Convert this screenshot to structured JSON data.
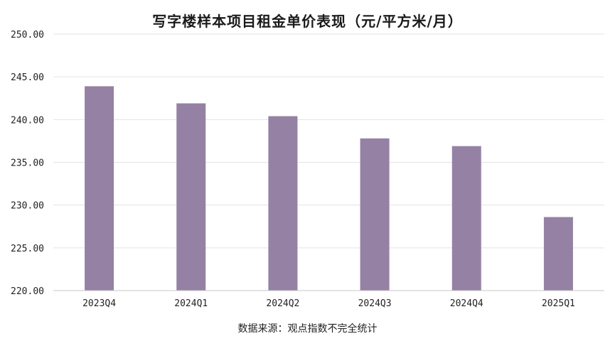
{
  "chart_data": {
    "type": "bar",
    "title": "写字楼样本项目租金单价表现（元/平方米/月）",
    "categories": [
      "2023Q4",
      "2024Q1",
      "2024Q2",
      "2024Q3",
      "2024Q4",
      "2025Q1"
    ],
    "series": [
      {
        "values": [
          243.9,
          241.9,
          240.4,
          237.8,
          236.9,
          228.6
        ]
      }
    ],
    "ylim": [
      220,
      250
    ],
    "y_ticks": [
      "220.00",
      "225.00",
      "230.00",
      "235.00",
      "240.00",
      "245.00",
      "250.00"
    ],
    "grid": true,
    "legend": "none",
    "bar_color": "#9581a3",
    "source_note": "数据来源：观点指数不完全统计"
  }
}
